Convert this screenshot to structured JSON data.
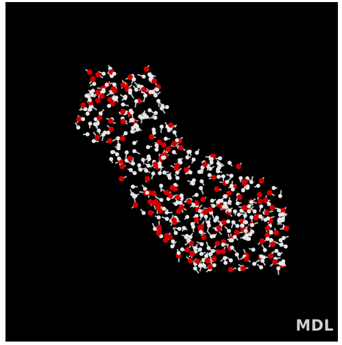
{
  "logo": "MDL"
}
